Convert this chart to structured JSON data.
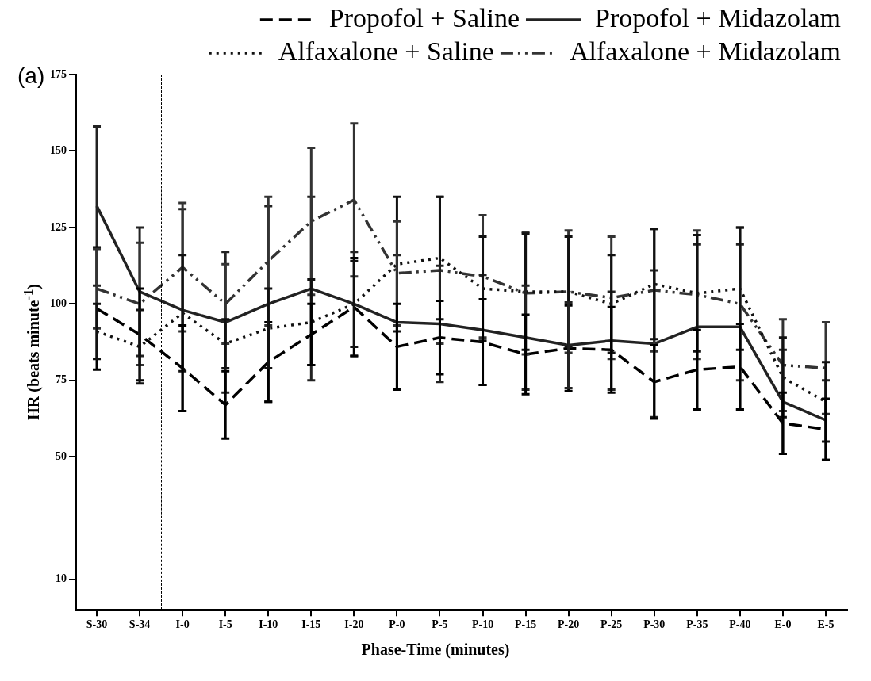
{
  "chart_data": {
    "type": "line",
    "xlabel": "Phase-Time (minutes)",
    "ylabel": "HR (beats minute$^{-1}$)",
    "annotations": [
      "(a)"
    ],
    "categories": [
      "S-30",
      "S-34",
      "I-0",
      "I-5",
      "I-10",
      "I-15",
      "I-20",
      "P-0",
      "P-5",
      "P-10",
      "P-15",
      "P-20",
      "P-25",
      "P-30",
      "P-35",
      "P-40",
      "E-0",
      "E-5"
    ],
    "ylim": [
      0,
      175
    ],
    "yticks": [
      10,
      50,
      75,
      100,
      125,
      150,
      175
    ],
    "grid": false,
    "legend": "top right",
    "marker": "none",
    "series": [
      {
        "name": "Propofol + Saline",
        "color": "#000000",
        "line_style": "dashed",
        "values": [
          98.5,
          90,
          79,
          67,
          81,
          90,
          99,
          86,
          89,
          87.5,
          83.5,
          85.5,
          85,
          74.5,
          78.5,
          79.5,
          61,
          59
        ],
        "errors": [
          20,
          15,
          14,
          11,
          13,
          10,
          16,
          14,
          12,
          14,
          13,
          14,
          14,
          12,
          13,
          14,
          10,
          10
        ]
      },
      {
        "name": "Propofol + Midazolam",
        "color": "#222222",
        "line_style": "solid",
        "values": [
          132,
          104,
          98,
          94,
          100,
          105,
          100,
          94,
          93.5,
          91.5,
          89,
          86.5,
          88,
          87,
          92.5,
          92.5,
          68,
          62
        ],
        "errors": [
          26,
          21,
          33,
          23,
          32,
          30,
          17,
          22,
          19,
          18,
          17,
          14,
          16,
          24,
          27,
          27,
          17,
          13
        ]
      },
      {
        "name": "Alfaxalone + Saline",
        "color": "#111111",
        "line_style": "dotted",
        "values": [
          91,
          86,
          97,
          87,
          92,
          94,
          100,
          113,
          115,
          105,
          104,
          104,
          100,
          106.5,
          103.5,
          105,
          76,
          68
        ],
        "errors": [
          9,
          12,
          19,
          8,
          13,
          14,
          14,
          22,
          20,
          17,
          19,
          18,
          16,
          18,
          19,
          20,
          13,
          13
        ]
      },
      {
        "name": "Alfaxalone + Midazolam",
        "color": "#333333",
        "line_style": "dashdot",
        "values": [
          105,
          100,
          112,
          100,
          114,
          127,
          134,
          110,
          111,
          109,
          103.5,
          104,
          102,
          104.5,
          103,
          100,
          80,
          79
        ],
        "errors": [
          13,
          20,
          21,
          13,
          21,
          24,
          25,
          17,
          24,
          20,
          20,
          20,
          20,
          20,
          21,
          25,
          15,
          15
        ]
      }
    ]
  }
}
